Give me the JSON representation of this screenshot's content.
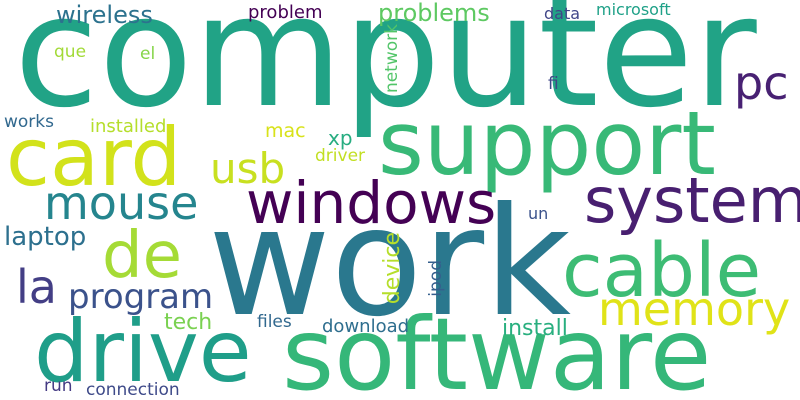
{
  "words": {
    "computer": {
      "text": "computer",
      "color": "#21a386"
    },
    "work": {
      "text": "work",
      "color": "#2a788e"
    },
    "software": {
      "text": "software",
      "color": "#35b779"
    },
    "support": {
      "text": "support",
      "color": "#38b977"
    },
    "card": {
      "text": "card",
      "color": "#d2e21b"
    },
    "drive": {
      "text": "drive",
      "color": "#1f9e89"
    },
    "windows": {
      "text": "windows",
      "color": "#440154"
    },
    "system": {
      "text": "system",
      "color": "#481f70"
    },
    "cable": {
      "text": "cable",
      "color": "#3dbc74"
    },
    "de": {
      "text": "de",
      "color": "#a5db36"
    },
    "memory": {
      "text": "memory",
      "color": "#e0e318"
    },
    "mouse": {
      "text": "mouse",
      "color": "#25858e"
    },
    "pc": {
      "text": "pc",
      "color": "#482173"
    },
    "program": {
      "text": "program",
      "color": "#3b528b"
    },
    "la": {
      "text": "la",
      "color": "#433e85"
    },
    "usb": {
      "text": "usb",
      "color": "#c8e020"
    },
    "wireless": {
      "text": "wireless",
      "color": "#2c728e"
    },
    "problems": {
      "text": "problems",
      "color": "#5ec962"
    },
    "laptop": {
      "text": "laptop",
      "color": "#2d708e"
    },
    "install": {
      "text": "install",
      "color": "#29af7f"
    },
    "tech": {
      "text": "tech",
      "color": "#7ad151"
    },
    "device": {
      "text": "device",
      "color": "#b5de2b"
    },
    "download": {
      "text": "download",
      "color": "#2e6e8e"
    },
    "problem": {
      "text": "problem",
      "color": "#440154"
    },
    "network": {
      "text": "network",
      "color": "#52c569"
    },
    "installed": {
      "text": "installed",
      "color": "#b5de2b"
    },
    "mac": {
      "text": "mac",
      "color": "#d8e219"
    },
    "xp": {
      "text": "xp",
      "color": "#27ad81"
    },
    "driver": {
      "text": "driver",
      "color": "#c2df23"
    },
    "files": {
      "text": "files",
      "color": "#31688e"
    },
    "connection": {
      "text": "connection",
      "color": "#3e4a89"
    },
    "run": {
      "text": "run",
      "color": "#443a83"
    },
    "works": {
      "text": "works",
      "color": "#31688e"
    },
    "que": {
      "text": "que",
      "color": "#a2da37"
    },
    "el": {
      "text": "el",
      "color": "#86d549"
    },
    "data": {
      "text": "data",
      "color": "#404688"
    },
    "microsoft": {
      "text": "microsoft",
      "color": "#1fa188"
    },
    "fi": {
      "text": "fi",
      "color": "#3f4788"
    },
    "un": {
      "text": "un",
      "color": "#3b528b"
    },
    "ipod": {
      "text": "ipod",
      "color": "#355f8d"
    }
  }
}
